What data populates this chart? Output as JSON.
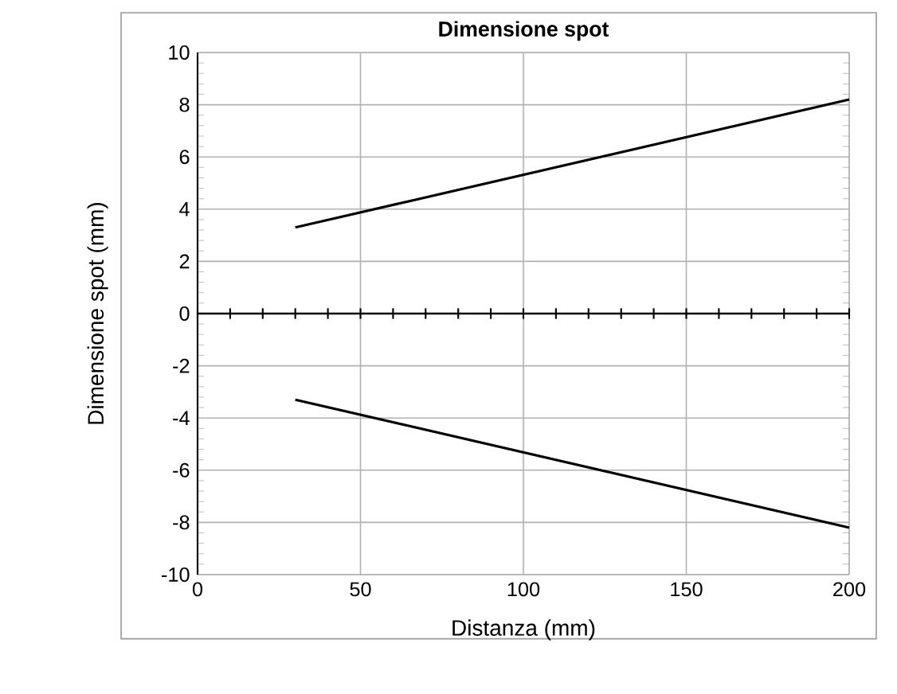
{
  "chart_data": {
    "type": "line",
    "title": "Dimensione spot",
    "xlabel": "Distanza (mm)",
    "ylabel": "Dimensione spot (mm)",
    "xlim": [
      0,
      200
    ],
    "xticks": [
      0,
      50,
      100,
      150,
      200
    ],
    "ylim": [
      -10,
      10
    ],
    "yticks": [
      -10,
      -8,
      -6,
      -4,
      -2,
      0,
      2,
      4,
      6,
      8,
      10
    ],
    "grid": true,
    "marker": "none",
    "line_style": "solid",
    "x": [
      30,
      200
    ],
    "ref_lines": [
      {
        "axis": "y",
        "value": 0,
        "color": "#000000"
      }
    ],
    "series": [
      {
        "color": "#000000",
        "values": [
          3.3,
          8.2
        ]
      },
      {
        "color": "#000000",
        "values": [
          -3.3,
          -8.2
        ]
      }
    ]
  }
}
